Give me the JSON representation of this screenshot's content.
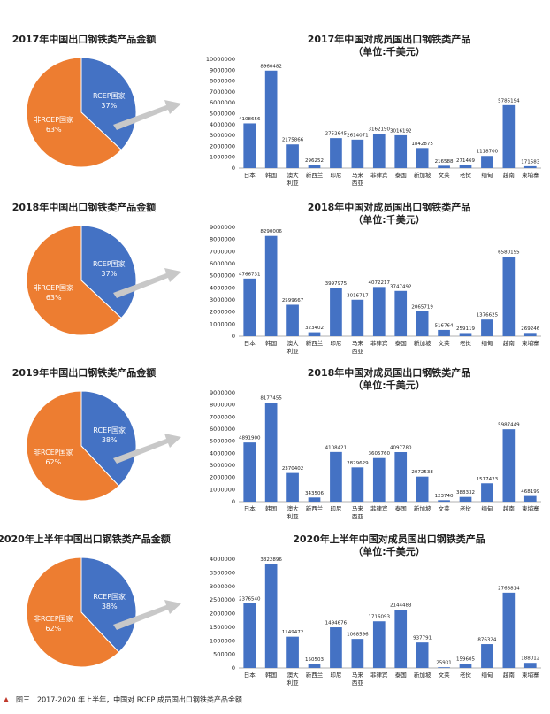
{
  "chart_data": [
    {
      "type": "pie",
      "title": "2017年中国出口钢铁类产品金额",
      "categories": [
        "RCEP国家",
        "非RCEP国家"
      ],
      "values": [
        37,
        63
      ],
      "value_labels": [
        "37%",
        "63%"
      ],
      "colors": [
        "#4472c4",
        "#ed7d31"
      ]
    },
    {
      "type": "bar",
      "title": "2017年中国对成员国出口钢铁类产品",
      "subtitle": "（单位:千美元）",
      "categories": [
        "日本",
        "韩国",
        "澳大利亚",
        "新西兰",
        "印尼",
        "马来西亚",
        "菲律宾",
        "泰国",
        "新加坡",
        "文莱",
        "老挝",
        "缅甸",
        "越南",
        "柬埔寨"
      ],
      "values": [
        4108656,
        8960482,
        2175866,
        296252,
        2752645,
        2614071,
        3162190,
        3016192,
        1842875,
        216588,
        271469,
        1118700,
        5785194,
        171583
      ],
      "color": "#4472c4",
      "ylim": [
        0,
        10000000
      ],
      "yticks": [
        0,
        1000000,
        2000000,
        3000000,
        4000000,
        5000000,
        6000000,
        7000000,
        8000000,
        9000000,
        10000000
      ],
      "grid": false
    },
    {
      "type": "pie",
      "title": "2018年中国出口钢铁类产品金额",
      "categories": [
        "RCEP国家",
        "非RCEP国家"
      ],
      "values": [
        37,
        63
      ],
      "value_labels": [
        "37%",
        "63%"
      ],
      "colors": [
        "#4472c4",
        "#ed7d31"
      ]
    },
    {
      "type": "bar",
      "title": "2018年中国对成员国出口钢铁类产品",
      "subtitle": "（单位:千美元）",
      "categories": [
        "日本",
        "韩国",
        "澳大利亚",
        "新西兰",
        "印尼",
        "马来西亚",
        "菲律宾",
        "泰国",
        "新加坡",
        "文莱",
        "老挝",
        "缅甸",
        "越南",
        "柬埔寨"
      ],
      "values": [
        4766731,
        8290006,
        2599667,
        323402,
        3997975,
        3016717,
        4072217,
        3747492,
        2065719,
        516764,
        259119,
        1376625,
        6580195,
        269246
      ],
      "color": "#4472c4",
      "ylim": [
        0,
        9000000
      ],
      "yticks": [
        0,
        1000000,
        2000000,
        3000000,
        4000000,
        5000000,
        6000000,
        7000000,
        8000000,
        9000000
      ],
      "grid": false
    },
    {
      "type": "pie",
      "title": "2019年中国出口钢铁类产品金额",
      "categories": [
        "RCEP国家",
        "非RCEP国家"
      ],
      "values": [
        38,
        62
      ],
      "value_labels": [
        "38%",
        "62%"
      ],
      "colors": [
        "#4472c4",
        "#ed7d31"
      ]
    },
    {
      "type": "bar",
      "title": "2018年中国对成员国出口钢铁类产品",
      "subtitle": "（单位:千美元）",
      "categories": [
        "日本",
        "韩国",
        "澳大利亚",
        "新西兰",
        "印尼",
        "马来西亚",
        "菲律宾",
        "泰国",
        "新加坡",
        "文莱",
        "老挝",
        "缅甸",
        "越南",
        "柬埔寨"
      ],
      "values": [
        4891900,
        8177455,
        2370402,
        343506,
        4108421,
        2829629,
        3605760,
        4097780,
        2072538,
        123740,
        388332,
        1517423,
        5987449,
        468199
      ],
      "color": "#4472c4",
      "ylim": [
        0,
        9000000
      ],
      "yticks": [
        0,
        1000000,
        2000000,
        3000000,
        4000000,
        5000000,
        6000000,
        7000000,
        8000000,
        9000000
      ],
      "grid": false
    },
    {
      "type": "pie",
      "title": "2020年上半年中国出口钢铁类产品金额",
      "categories": [
        "RCEP国家",
        "非RCEP国家"
      ],
      "values": [
        38,
        62
      ],
      "value_labels": [
        "38%",
        "62%"
      ],
      "colors": [
        "#4472c4",
        "#ed7d31"
      ]
    },
    {
      "type": "bar",
      "title": "2020年上半年中国对成员国出口钢铁类产品",
      "subtitle": "（单位:千美元）",
      "categories": [
        "日本",
        "韩国",
        "澳大利亚",
        "新西兰",
        "印尼",
        "马来西亚",
        "菲律宾",
        "泰国",
        "新加坡",
        "文莱",
        "老挝",
        "缅甸",
        "越南",
        "柬埔寨"
      ],
      "values": [
        2376540,
        3822896,
        1149472,
        150503,
        1494676,
        1068596,
        1716093,
        2144483,
        937791,
        25931,
        159605,
        876324,
        2768814,
        188012
      ],
      "color": "#4472c4",
      "ylim": [
        0,
        4000000
      ],
      "yticks": [
        0,
        500000,
        1000000,
        1500000,
        2000000,
        2500000,
        3000000,
        3500000,
        4000000
      ],
      "grid": false
    }
  ],
  "caption": "图三　2017-2020 年上半年，中国对 RCEP 成员国出口钢铁类产品金额"
}
